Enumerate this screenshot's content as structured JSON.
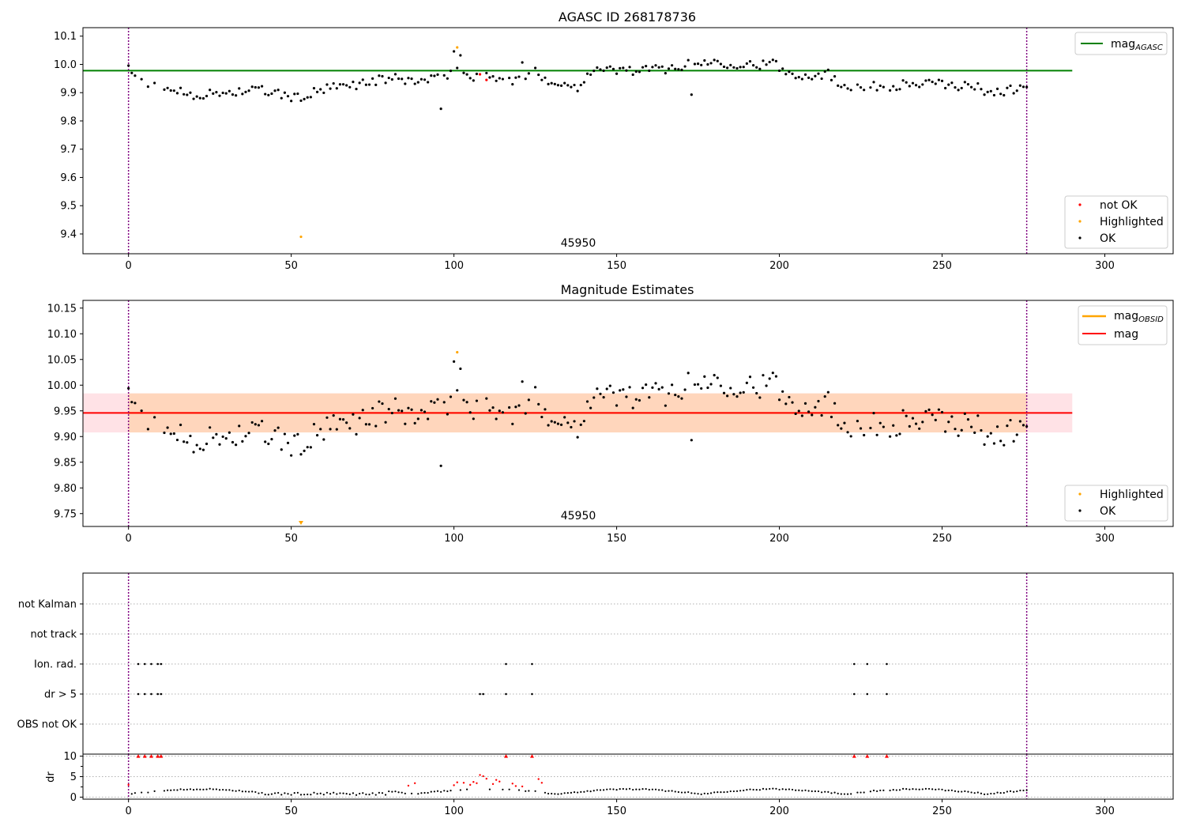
{
  "chart_data": [
    {
      "type": "scatter",
      "title": "AGASC ID 268178736",
      "xlim": [
        -14,
        321
      ],
      "ylim": [
        9.33,
        10.13
      ],
      "xticks": [
        0,
        50,
        100,
        150,
        200,
        250,
        300
      ],
      "yticks": [
        9.4,
        9.5,
        9.6,
        9.7,
        9.8,
        9.9,
        10.0,
        10.1
      ],
      "ytick_labels": [
        "9.4",
        "9.5",
        "9.6",
        "9.7",
        "9.8",
        "9.9",
        "10.0",
        "10.1"
      ],
      "vlines": [
        0,
        276
      ],
      "hline": {
        "value": 9.978,
        "x_range": [
          -14,
          290
        ],
        "color": "#008000",
        "label": "mag",
        "label_sub": "AGASC"
      },
      "annotation": {
        "text": "45950",
        "x": 138,
        "y": 9.355
      },
      "legend_upper": "upper right",
      "legend_lower": "lower right",
      "series_points": [
        {
          "name": "not OK",
          "color": "#ff0000",
          "points": [
            [
              108,
              9.965
            ],
            [
              110,
              9.945
            ]
          ]
        },
        {
          "name": "Highlighted",
          "color": "#ffa500",
          "points": [
            [
              101,
              10.06
            ],
            [
              53,
              9.39
            ]
          ]
        },
        {
          "name": "OK",
          "color": "#000000"
        }
      ]
    },
    {
      "type": "scatter",
      "title": "Magnitude Estimates",
      "xlim": [
        -14,
        321
      ],
      "ylim": [
        9.725,
        10.165
      ],
      "xticks": [
        0,
        50,
        100,
        150,
        200,
        250,
        300
      ],
      "yticks": [
        9.75,
        9.8,
        9.85,
        9.9,
        9.95,
        10.0,
        10.05,
        10.1,
        10.15
      ],
      "ytick_labels": [
        "9.75",
        "9.80",
        "9.85",
        "9.90",
        "9.95",
        "10.00",
        "10.05",
        "10.10",
        "10.15"
      ],
      "vlines": [
        0,
        276
      ],
      "hline_obsid": {
        "value": 9.946,
        "x_range": [
          -14,
          290
        ],
        "color": "#ffa500",
        "label": "mag",
        "label_sub": "OBSID"
      },
      "hline_mag": {
        "value": 9.946,
        "x_range": [
          -14,
          290
        ],
        "color": "#ff0000",
        "label": "mag"
      },
      "band_outer": {
        "low": 9.908,
        "high": 9.984,
        "color": "#ffb6c1"
      },
      "band_inner": {
        "low": 9.908,
        "high": 9.984,
        "color": "#ffcc99"
      },
      "annotation": {
        "text": "45950",
        "x": 138,
        "y": 9.735
      },
      "highlighted_points": [
        [
          101,
          10.064
        ]
      ],
      "highlighted_marker": {
        "x": 53,
        "direction": "down"
      },
      "legend_upper": "upper right",
      "legend_lower": "lower right",
      "series_points": [
        {
          "name": "Highlighted",
          "color": "#ffa500"
        },
        {
          "name": "OK",
          "color": "#000000"
        }
      ]
    },
    {
      "type": "scatter",
      "categories": [
        "not Kalman",
        "not track",
        "Ion. rad.",
        "dr > 5",
        "OBS not OK"
      ],
      "xlim": [
        -14,
        321
      ],
      "vlines": [
        0,
        276
      ],
      "flags": {
        "Ion. rad.": [
          3,
          5,
          7,
          9,
          10,
          116,
          124,
          223,
          227,
          233
        ],
        "dr > 5": [
          3,
          5,
          7,
          9,
          10,
          108,
          109,
          116,
          124,
          223,
          227,
          233
        ]
      }
    },
    {
      "type": "scatter",
      "ylabel": "dr",
      "xlim": [
        -14,
        321
      ],
      "ylim": [
        -0.5,
        10.5
      ],
      "xticks": [
        0,
        50,
        100,
        150,
        200,
        250,
        300
      ],
      "yticks": [
        0,
        5,
        10
      ],
      "ytick_labels": [
        "0",
        "5",
        "10"
      ],
      "vlines": [
        0,
        276
      ],
      "capped_markers": [
        3,
        5,
        7,
        9,
        10,
        116,
        124,
        223,
        227,
        233
      ],
      "red_points": [
        [
          0,
          3.0
        ],
        [
          86,
          2.8
        ],
        [
          88,
          3.4
        ],
        [
          100,
          2.9
        ],
        [
          101,
          3.6
        ],
        [
          103,
          3.5
        ],
        [
          105,
          3.0
        ],
        [
          106,
          3.7
        ],
        [
          107,
          3.4
        ],
        [
          108,
          5.4
        ],
        [
          109,
          5.1
        ],
        [
          110,
          4.5
        ],
        [
          112,
          3.2
        ],
        [
          113,
          4.2
        ],
        [
          114,
          3.8
        ],
        [
          118,
          3.3
        ],
        [
          119,
          2.7
        ],
        [
          121,
          2.6
        ],
        [
          126,
          4.4
        ],
        [
          127,
          3.5
        ]
      ]
    }
  ]
}
